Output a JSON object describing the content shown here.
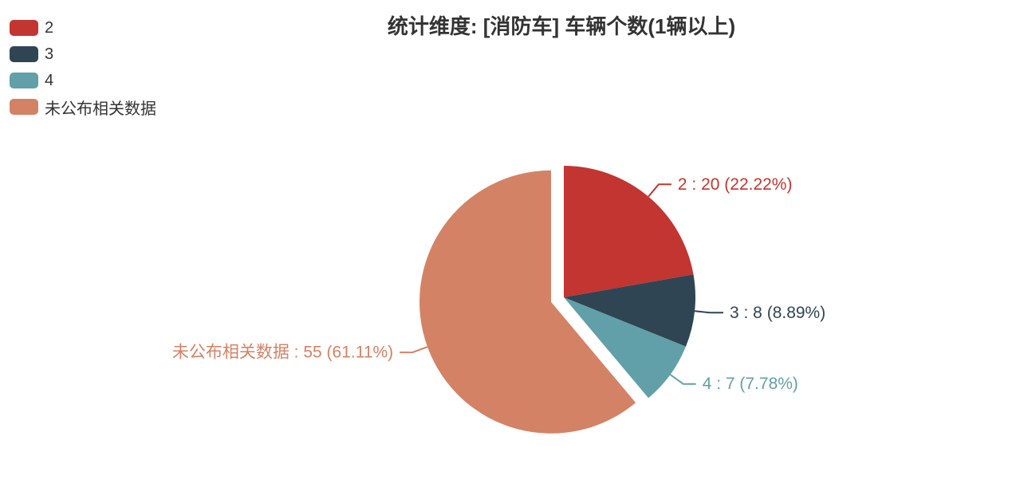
{
  "chart_data": {
    "type": "pie",
    "title": "统计维度: [消防车] 车辆个数(1辆以上)",
    "background": "#ffffff",
    "total": 90,
    "start_angle": "top",
    "direction": "clockwise",
    "legend_position": "top-left",
    "legend_items": [
      "2",
      "3",
      "4",
      "未公布相关数据"
    ],
    "label_format": "{name} : {value} ({percent})",
    "series": [
      {
        "name": "2",
        "value": 20,
        "percent": "22.22%",
        "color": "#c23531",
        "selected": false,
        "label": "2 : 20 (22.22%)"
      },
      {
        "name": "3",
        "value": 8,
        "percent": "8.89%",
        "color": "#2f4554",
        "selected": false,
        "label": "3 : 8 (8.89%)"
      },
      {
        "name": "4",
        "value": 7,
        "percent": "7.78%",
        "color": "#61a0a8",
        "selected": false,
        "label": "4 : 7 (7.78%)"
      },
      {
        "name": "未公布相关数据",
        "value": 55,
        "percent": "61.11%",
        "color": "#d48265",
        "selected": true,
        "label": "未公布相关数据 : 55 (61.11%)"
      }
    ]
  }
}
